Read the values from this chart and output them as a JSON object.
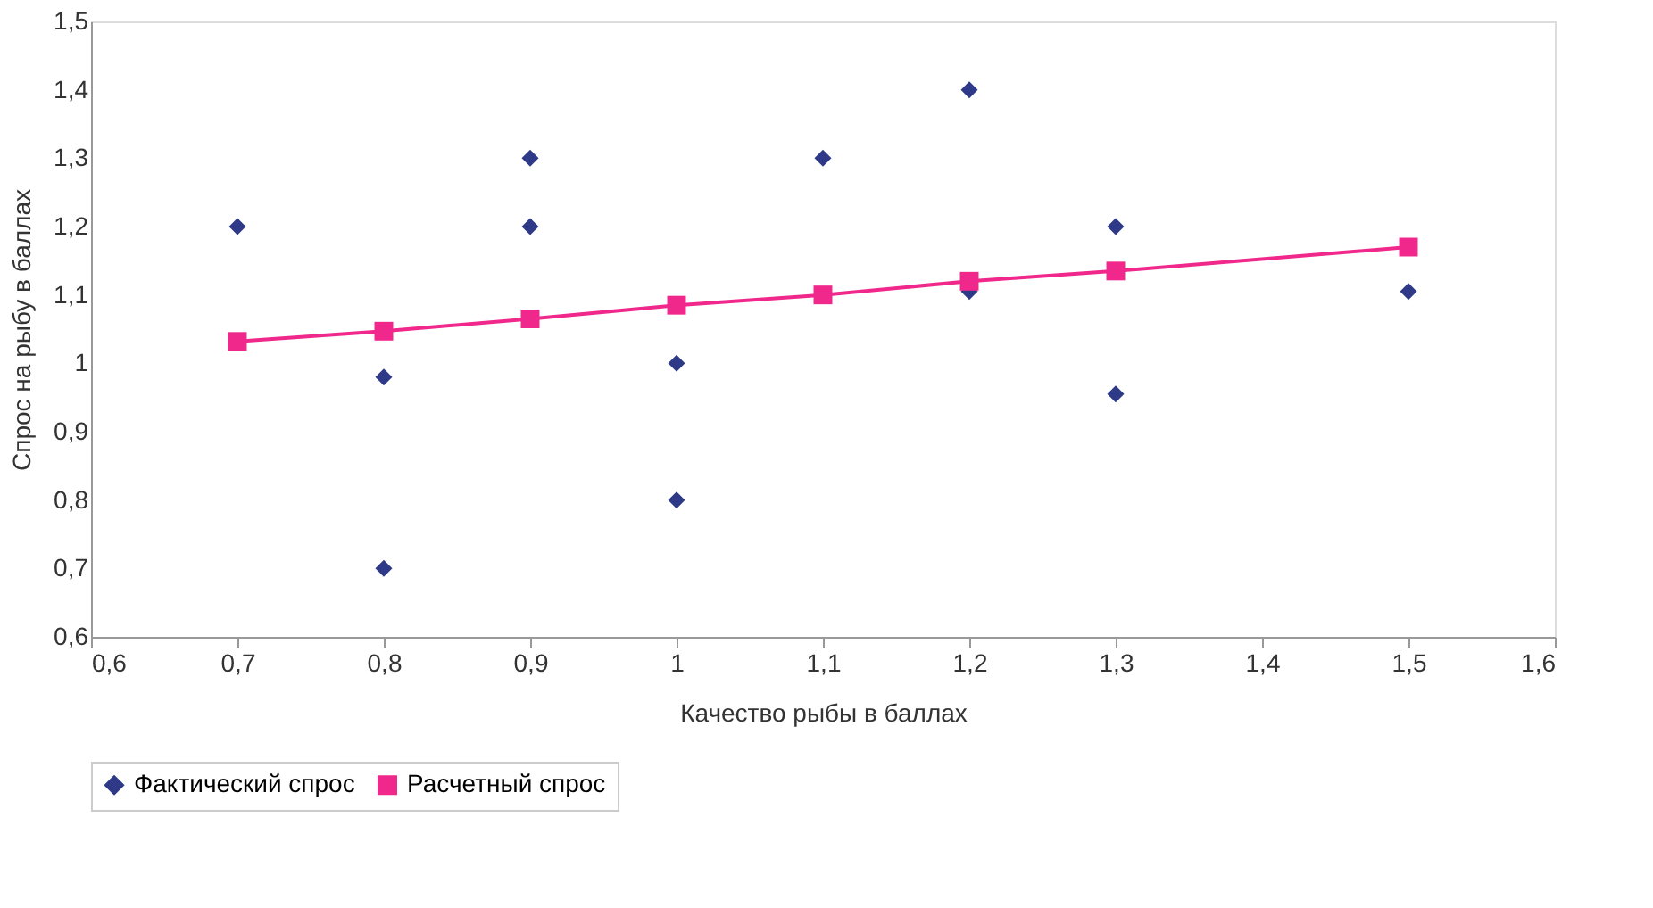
{
  "chart_data": {
    "type": "scatter",
    "xlabel": "Качество рыбы в баллах",
    "ylabel": "Спрос на рыбу в баллах",
    "xlim": [
      0.6,
      1.6
    ],
    "ylim": [
      0.6,
      1.5
    ],
    "xticks": [
      {
        "value": 0.6,
        "label": "0,6"
      },
      {
        "value": 0.7,
        "label": "0,7"
      },
      {
        "value": 0.8,
        "label": "0,8"
      },
      {
        "value": 0.9,
        "label": "0,9"
      },
      {
        "value": 1,
        "label": "1"
      },
      {
        "value": 1.1,
        "label": "1,1"
      },
      {
        "value": 1.2,
        "label": "1,2"
      },
      {
        "value": 1.3,
        "label": "1,3"
      },
      {
        "value": 1.4,
        "label": "1,4"
      },
      {
        "value": 1.5,
        "label": "1,5"
      },
      {
        "value": 1.6,
        "label": "1,6"
      }
    ],
    "yticks": [
      {
        "value": 0.6,
        "label": "0,6"
      },
      {
        "value": 0.7,
        "label": "0,7"
      },
      {
        "value": 0.8,
        "label": "0,8"
      },
      {
        "value": 0.9,
        "label": "0,9"
      },
      {
        "value": 1,
        "label": "1"
      },
      {
        "value": 1.1,
        "label": "1,1"
      },
      {
        "value": 1.2,
        "label": "1,2"
      },
      {
        "value": 1.3,
        "label": "1,3"
      },
      {
        "value": 1.4,
        "label": "1,4"
      },
      {
        "value": 1.5,
        "label": "1,5"
      }
    ],
    "grid": false,
    "legend": "bottom",
    "series": [
      {
        "name": "Фактический спрос",
        "marker": "diamond",
        "color": "#2e3a87",
        "x": [
          0.7,
          0.8,
          0.8,
          0.9,
          0.9,
          1.0,
          1.0,
          1.1,
          1.2,
          1.2,
          1.3,
          1.3,
          1.5
        ],
        "values": [
          1.2,
          0.98,
          0.7,
          1.3,
          1.2,
          1.0,
          0.8,
          1.3,
          1.4,
          1.105,
          1.2,
          0.955,
          1.105
        ]
      },
      {
        "name": "Расчетный спрос",
        "type": "line",
        "marker": "square",
        "color": "#f0288c",
        "x": [
          0.7,
          0.8,
          0.9,
          1.0,
          1.1,
          1.2,
          1.3,
          1.5
        ],
        "values": [
          1.032,
          1.047,
          1.065,
          1.085,
          1.1,
          1.12,
          1.135,
          1.17
        ]
      }
    ]
  }
}
